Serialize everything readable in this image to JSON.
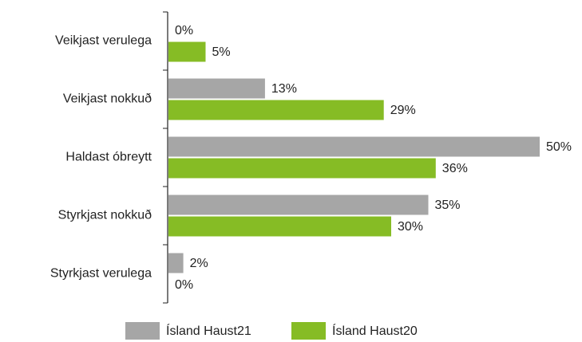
{
  "chart_data": {
    "type": "hbar",
    "categories": [
      "Veikjast verulega",
      "Veikjast nokkuð",
      "Haldast óbreytt",
      "Styrkjast nokkuð",
      "Styrkjast verulega"
    ],
    "series": [
      {
        "name": "Ísland Haust21",
        "color": "#a6a6a6",
        "values": [
          0,
          13,
          50,
          35,
          2
        ],
        "value_labels": [
          "0%",
          "13%",
          "50%",
          "35%",
          "2%"
        ]
      },
      {
        "name": "Ísland Haust20",
        "color": "#86bc25",
        "values": [
          5,
          29,
          36,
          30,
          0
        ],
        "value_labels": [
          "5%",
          "29%",
          "36%",
          "30%",
          "0%"
        ]
      }
    ],
    "legend": "bottom"
  }
}
